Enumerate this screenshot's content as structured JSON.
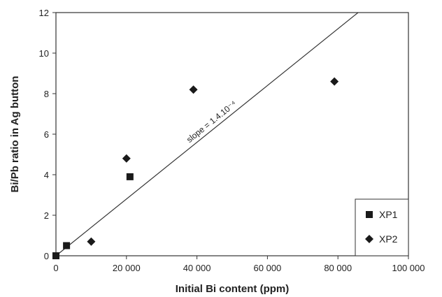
{
  "chart_data": {
    "type": "scatter",
    "xlabel": "Initial Bi content (ppm)",
    "ylabel": "Bi/Pb ratio in Ag button",
    "xlim": [
      0,
      100000
    ],
    "ylim": [
      0,
      12
    ],
    "xticks": [
      0,
      20000,
      40000,
      60000,
      80000,
      100000
    ],
    "xtick_labels": [
      "0",
      "20 000",
      "40 000",
      "60 000",
      "80 000",
      "100 000"
    ],
    "yticks": [
      0,
      2,
      4,
      6,
      8,
      10,
      12
    ],
    "ytick_labels": [
      "0",
      "2",
      "4",
      "6",
      "8",
      "10",
      "12"
    ],
    "grid": false,
    "legend_position": "bottom-right",
    "series": [
      {
        "name": "XP1",
        "marker": "square",
        "color": "#1a1a1a",
        "x": [
          0,
          3000,
          21000
        ],
        "y": [
          0,
          0.5,
          3.9
        ]
      },
      {
        "name": "XP2",
        "marker": "diamond",
        "color": "#1a1a1a",
        "x": [
          10000,
          20000,
          39000,
          79000
        ],
        "y": [
          0.7,
          4.8,
          8.2,
          8.6
        ]
      }
    ],
    "trendline": {
      "slope": 0.00014,
      "intercept": 0,
      "x_start": 0,
      "x_end": 100000
    },
    "annotations": [
      {
        "text": "slope = 1.4.10⁻⁴"
      }
    ]
  }
}
